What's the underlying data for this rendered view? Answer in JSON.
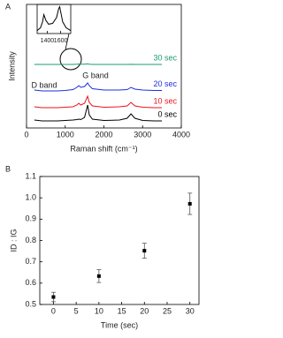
{
  "chart_data": [
    {
      "type": "line",
      "panel_label": "A",
      "xlabel": "Raman shift (cm⁻¹)",
      "ylabel": "Intensity",
      "x": [
        200,
        400,
        800,
        1000,
        1200,
        1300,
        1350,
        1400,
        1500,
        1580,
        1620,
        1700,
        2000,
        2400,
        2600,
        2700,
        2800,
        3000,
        3300,
        3500
      ],
      "series": [
        {
          "name": "0 sec",
          "color": "#000000",
          "values": [
            0.9,
            0.8,
            0.8,
            0.85,
            0.9,
            0.95,
            1.0,
            0.95,
            1.2,
            2.6,
            1.5,
            1.0,
            0.85,
            0.9,
            1.1,
            1.6,
            1.1,
            0.85,
            0.8,
            0.8
          ]
        },
        {
          "name": "10 sec",
          "color": "#e8141b",
          "values": [
            2.4,
            2.3,
            2.3,
            2.35,
            2.4,
            2.6,
            2.8,
            2.6,
            2.8,
            3.6,
            2.9,
            2.5,
            2.35,
            2.4,
            2.5,
            2.9,
            2.5,
            2.35,
            2.3,
            2.3
          ]
        },
        {
          "name": "20 sec",
          "color": "#1a2fe0",
          "values": [
            4.3,
            4.2,
            4.2,
            4.25,
            4.35,
            4.6,
            4.8,
            4.6,
            4.7,
            5.1,
            4.8,
            4.45,
            4.3,
            4.3,
            4.35,
            4.6,
            4.4,
            4.3,
            4.25,
            4.25
          ]
        },
        {
          "name": "30 sec",
          "color": "#179d6a",
          "values": [
            7.2,
            7.2,
            7.2,
            7.2,
            7.2,
            7.22,
            7.24,
            7.22,
            7.22,
            7.26,
            7.22,
            7.2,
            7.2,
            7.2,
            7.2,
            7.21,
            7.2,
            7.2,
            7.2,
            7.2
          ]
        }
      ],
      "annotations": [
        "D band",
        "G band"
      ],
      "xlim": [
        0,
        4000
      ],
      "xticks": [
        0,
        1000,
        2000,
        3000,
        4000
      ],
      "ylim": [
        0,
        14
      ]
    },
    {
      "type": "line",
      "x": [
        1250,
        1300,
        1330,
        1350,
        1380,
        1420,
        1480,
        1540,
        1570,
        1585,
        1600,
        1630,
        1680,
        1750
      ],
      "series": [
        {
          "color": "#000000",
          "values": [
            1,
            2,
            4,
            6.5,
            4.5,
            3.2,
            3.5,
            5.5,
            8.5,
            9.2,
            7.5,
            4,
            2,
            1
          ]
        }
      ],
      "xlim": [
        1250,
        1750
      ],
      "xticks": [
        1400,
        1600
      ],
      "ylim": [
        0,
        10
      ]
    },
    {
      "type": "scatter",
      "panel_label": "B",
      "xlabel": "Time (sec)",
      "ylabel": "ID : IG",
      "x": [
        0,
        10,
        20,
        30
      ],
      "values": [
        0.535,
        0.633,
        0.752,
        0.972
      ],
      "errors": [
        0.022,
        0.03,
        0.035,
        0.05
      ],
      "color": "#000000",
      "xlim": [
        -3,
        32
      ],
      "xticks": [
        0,
        5,
        10,
        15,
        20,
        25,
        30
      ],
      "ylim": [
        0.5,
        1.1
      ],
      "yticks": [
        0.5,
        0.6,
        0.7,
        0.8,
        0.9,
        {
          "value": 1,
          "label": "1.0"
        },
        1.1
      ]
    }
  ]
}
